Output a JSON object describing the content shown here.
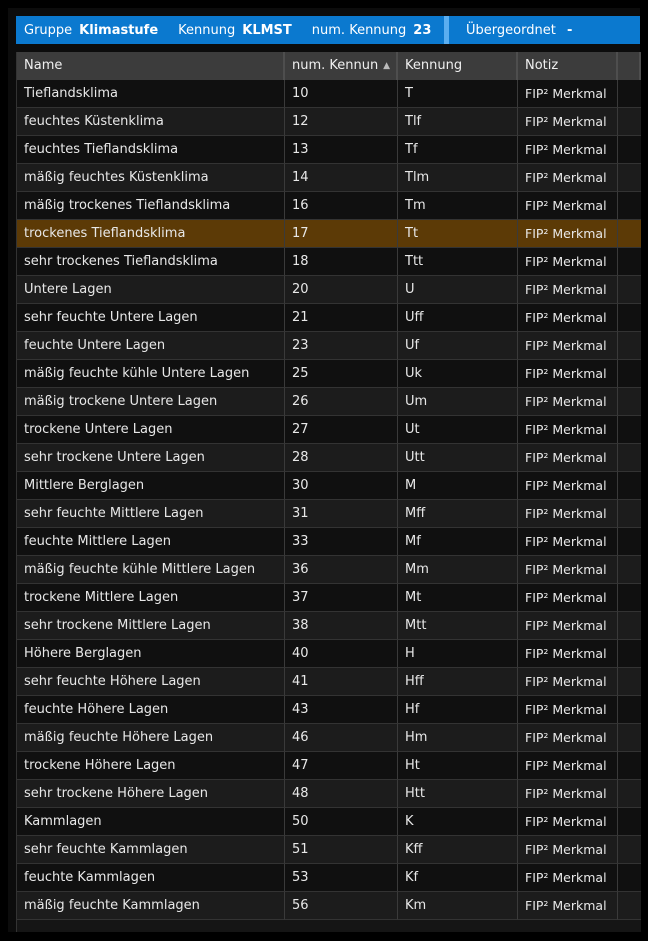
{
  "topbar": {
    "group_label": "Gruppe",
    "group_value": "Klimastufe",
    "code_label": "Kennung",
    "code_value": "KLMST",
    "num_label": "num. Kennung",
    "num_value": "23",
    "parent_label": "Übergeordnet",
    "parent_value": "-"
  },
  "table": {
    "columns": [
      "Name",
      "num. Kennun",
      "Kennung",
      "Notiz"
    ],
    "sort": {
      "column": "num. Kennung",
      "direction": "ascending",
      "icon": "sort-up-icon"
    },
    "selected_index": 5,
    "selected_color": "#5c3a06",
    "rows": [
      [
        "Tieflandsklima",
        "10",
        "T",
        "FIP² Merkmal"
      ],
      [
        "feuchtes Küstenklima",
        "12",
        "Tlf",
        "FIP² Merkmal"
      ],
      [
        "feuchtes Tieflandsklima",
        "13",
        "Tf",
        "FIP² Merkmal"
      ],
      [
        "mäßig feuchtes Küstenklima",
        "14",
        "Tlm",
        "FIP² Merkmal"
      ],
      [
        "mäßig trockenes Tieflandsklima",
        "16",
        "Tm",
        "FIP² Merkmal"
      ],
      [
        "trockenes Tieflandsklima",
        "17",
        "Tt",
        "FIP² Merkmal"
      ],
      [
        "sehr trockenes Tieflandsklima",
        "18",
        "Ttt",
        "FIP² Merkmal"
      ],
      [
        "Untere Lagen",
        "20",
        "U",
        "FIP² Merkmal"
      ],
      [
        "sehr feuchte Untere Lagen",
        "21",
        "Uff",
        "FIP² Merkmal"
      ],
      [
        "feuchte Untere Lagen",
        "23",
        "Uf",
        "FIP² Merkmal"
      ],
      [
        "mäßig feuchte kühle Untere Lagen",
        "25",
        "Uk",
        "FIP² Merkmal"
      ],
      [
        "mäßig trockene Untere Lagen",
        "26",
        "Um",
        "FIP² Merkmal"
      ],
      [
        "trockene Untere Lagen",
        "27",
        "Ut",
        "FIP² Merkmal"
      ],
      [
        "sehr trockene Untere Lagen",
        "28",
        "Utt",
        "FIP² Merkmal"
      ],
      [
        "Mittlere Berglagen",
        "30",
        "M",
        "FIP² Merkmal"
      ],
      [
        "sehr feuchte Mittlere Lagen",
        "31",
        "Mff",
        "FIP² Merkmal"
      ],
      [
        "feuchte Mittlere Lagen",
        "33",
        "Mf",
        "FIP² Merkmal"
      ],
      [
        "mäßig feuchte kühle Mittlere Lagen",
        "36",
        "Mm",
        "FIP² Merkmal"
      ],
      [
        "trockene Mittlere Lagen",
        "37",
        "Mt",
        "FIP² Merkmal"
      ],
      [
        "sehr trockene Mittlere Lagen",
        "38",
        "Mtt",
        "FIP² Merkmal"
      ],
      [
        "Höhere Berglagen",
        "40",
        "H",
        "FIP² Merkmal"
      ],
      [
        "sehr feuchte Höhere Lagen",
        "41",
        "Hff",
        "FIP² Merkmal"
      ],
      [
        "feuchte Höhere Lagen",
        "43",
        "Hf",
        "FIP² Merkmal"
      ],
      [
        "mäßig feuchte Höhere Lagen",
        "46",
        "Hm",
        "FIP² Merkmal"
      ],
      [
        "trockene Höhere Lagen",
        "47",
        "Ht",
        "FIP² Merkmal"
      ],
      [
        "sehr trockene Höhere Lagen",
        "48",
        "Htt",
        "FIP² Merkmal"
      ],
      [
        "Kammlagen",
        "50",
        "K",
        "FIP² Merkmal"
      ],
      [
        "sehr feuchte Kammlagen",
        "51",
        "Kff",
        "FIP² Merkmal"
      ],
      [
        "feuchte Kammlagen",
        "53",
        "Kf",
        "FIP² Merkmal"
      ],
      [
        "mäßig feuchte Kammlagen",
        "56",
        "Km",
        "FIP² Merkmal"
      ]
    ]
  }
}
